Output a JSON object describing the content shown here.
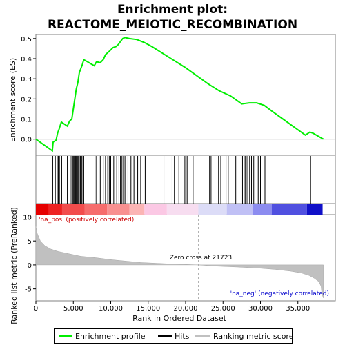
{
  "title_line1": "Enrichment plot:",
  "title_line2": "REACTOME_MEIOTIC_RECOMBINATION",
  "chart_data": {
    "type": "line",
    "x_axis": {
      "label": "Rank in Ordered Dataset",
      "range": [
        0,
        40000
      ],
      "ticks": [
        0,
        5000,
        10000,
        15000,
        20000,
        25000,
        30000,
        35000
      ]
    },
    "es_axis": {
      "label": "Enrichment score (ES)",
      "range": [
        -0.08,
        0.52
      ],
      "ticks": [
        0.0,
        0.1,
        0.2,
        0.3,
        0.4,
        0.5
      ]
    },
    "metric_axis": {
      "label": "Ranked list metric (PreRanked)",
      "range": [
        -7.5,
        10.5
      ],
      "ticks": [
        -5,
        0,
        5,
        10
      ]
    },
    "enrichment_profile": {
      "name": "Enrichment profile",
      "color": "#00ee00",
      "x": [
        0,
        2200,
        2300,
        2700,
        2900,
        3100,
        3400,
        3800,
        4200,
        4500,
        4800,
        5000,
        5200,
        5400,
        5600,
        5800,
        6000,
        6200,
        6400,
        7800,
        8100,
        8600,
        9000,
        9300,
        9600,
        9900,
        10300,
        10700,
        11000,
        11300,
        11600,
        11900,
        12500,
        13500,
        14500,
        15500,
        17000,
        18500,
        20000,
        21500,
        23000,
        24500,
        26000,
        27500,
        28500,
        29500,
        30500,
        31500,
        33000,
        34500,
        36000,
        36600,
        37000,
        38400
      ],
      "y": [
        0.0,
        -0.058,
        -0.015,
        -0.005,
        0.03,
        0.05,
        0.085,
        0.075,
        0.065,
        0.09,
        0.1,
        0.15,
        0.2,
        0.25,
        0.28,
        0.33,
        0.35,
        0.37,
        0.395,
        0.365,
        0.385,
        0.38,
        0.395,
        0.42,
        0.43,
        0.44,
        0.455,
        0.46,
        0.47,
        0.485,
        0.5,
        0.505,
        0.5,
        0.495,
        0.48,
        0.46,
        0.425,
        0.39,
        0.355,
        0.315,
        0.275,
        0.24,
        0.215,
        0.175,
        0.18,
        0.18,
        0.168,
        0.14,
        0.1,
        0.06,
        0.02,
        0.035,
        0.03,
        0.0
      ]
    },
    "hits": {
      "name": "Hits",
      "color": "#000000",
      "positions": [
        2250,
        2600,
        2850,
        3000,
        3150,
        3450,
        4200,
        4600,
        4800,
        4950,
        5050,
        5150,
        5250,
        5350,
        5450,
        5550,
        5650,
        5800,
        5950,
        6050,
        6150,
        6300,
        6400,
        7900,
        8100,
        8600,
        9000,
        9300,
        9600,
        9800,
        10000,
        10400,
        10800,
        11100,
        11300,
        11500,
        11700,
        11900,
        12300,
        12700,
        13100,
        13600,
        14000,
        14600,
        17100,
        18200,
        18500,
        19100,
        19900,
        20200,
        21000,
        23200,
        23400,
        24400,
        24700,
        25400,
        25700,
        26700,
        27600,
        27800,
        27950,
        28100,
        28300,
        28550,
        28800,
        29100,
        29700,
        30000,
        30600,
        36700
      ]
    },
    "ranking_metric": {
      "name": "Ranking metric scores",
      "color": "#c0c0c0",
      "x": [
        0,
        200,
        600,
        1200,
        2000,
        3000,
        4500,
        6000,
        8000,
        10000,
        12000,
        14000,
        16000,
        18000,
        20000,
        21723,
        24000,
        27000,
        30000,
        32000,
        34000,
        35500,
        36500,
        37200,
        37800,
        38100,
        38200,
        38400
      ],
      "y": [
        8.0,
        6.5,
        5.0,
        4.0,
        3.3,
        2.8,
        2.3,
        1.8,
        1.5,
        1.1,
        0.8,
        0.5,
        0.35,
        0.2,
        0.1,
        0.0,
        -0.25,
        -0.45,
        -0.7,
        -0.95,
        -1.3,
        -1.7,
        -2.2,
        -2.8,
        -3.5,
        -4.5,
        -6.0,
        -6.9
      ]
    },
    "zero_cross": {
      "x": 21723,
      "label": "Zero cross at 21723"
    },
    "pos_label": "'na_pos' (positively correlated)",
    "neg_label": "'na_neg' (negatively correlated)",
    "heat_bar": [
      {
        "from": 0,
        "to": 1700,
        "color": "#e60000"
      },
      {
        "from": 1700,
        "to": 3500,
        "color": "#ee2222"
      },
      {
        "from": 3500,
        "to": 6500,
        "color": "#f24c4c"
      },
      {
        "from": 6500,
        "to": 9500,
        "color": "#f66c6c"
      },
      {
        "from": 9500,
        "to": 12500,
        "color": "#f89090"
      },
      {
        "from": 12500,
        "to": 14500,
        "color": "#fbb4b4"
      },
      {
        "from": 14500,
        "to": 17500,
        "color": "#fbc8e4"
      },
      {
        "from": 17500,
        "to": 21700,
        "color": "#f7ddf0"
      },
      {
        "from": 21700,
        "to": 25500,
        "color": "#dcdcf7"
      },
      {
        "from": 25500,
        "to": 29000,
        "color": "#c0c0f5"
      },
      {
        "from": 29000,
        "to": 31500,
        "color": "#8c8cf0"
      },
      {
        "from": 31500,
        "to": 36200,
        "color": "#5050e0"
      },
      {
        "from": 36200,
        "to": 38300,
        "color": "#1010c8"
      }
    ]
  },
  "legend": {
    "items": [
      {
        "label": "Enrichment profile",
        "color": "#00ee00"
      },
      {
        "label": "Hits",
        "color": "#000000"
      },
      {
        "label": "Ranking metric scores",
        "color": "#c0c0c0"
      }
    ]
  }
}
